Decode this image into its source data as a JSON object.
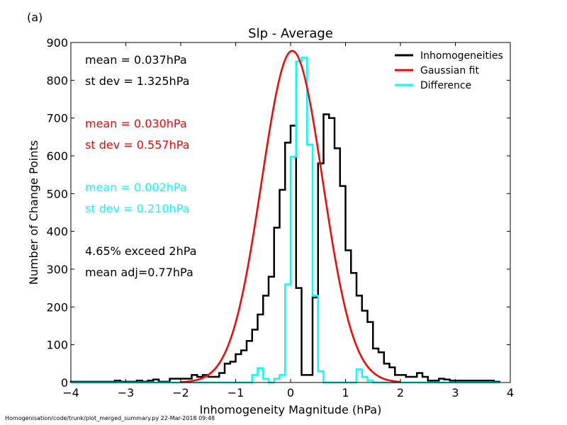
{
  "panel_label": "(a)",
  "footer": "Homogenisation/code/trunk/plot_merged_summary.py    22-Mar-2018 09:48",
  "chart_data": {
    "type": "line",
    "title": "Slp - Average",
    "xlabel": "Inhomogeneity Magnitude (hPa)",
    "ylabel": "Number of Change Points",
    "xlim": [
      -4,
      4
    ],
    "ylim": [
      0,
      900
    ],
    "xticks": [
      -4,
      -3,
      -2,
      -1,
      0,
      1,
      2,
      3,
      4
    ],
    "xtick_labels": [
      "−4",
      "−3",
      "−2",
      "−1",
      "0",
      "1",
      "2",
      "3",
      "4"
    ],
    "yticks": [
      0,
      100,
      200,
      300,
      400,
      500,
      600,
      700,
      800,
      900
    ],
    "yticks_labels": [
      "0",
      "100",
      "200",
      "300",
      "400",
      "500",
      "600",
      "700",
      "800",
      "900"
    ],
    "grid": false,
    "legend_position": "top-right",
    "series": [
      {
        "name": "Inhomogeneities",
        "color": "#000000",
        "kind": "step-histogram",
        "bin_width": 0.1,
        "x_edges_start": -4.0,
        "x_edges_end": 3.8,
        "values": [
          2,
          2,
          2,
          2,
          2,
          2,
          2,
          2,
          5,
          2,
          2,
          2,
          5,
          2,
          5,
          8,
          2,
          2,
          10,
          10,
          10,
          10,
          20,
          15,
          20,
          15,
          15,
          25,
          50,
          55,
          75,
          85,
          110,
          140,
          180,
          230,
          280,
          410,
          510,
          635,
          680,
          250,
          20,
          20,
          225,
          580,
          710,
          700,
          620,
          520,
          350,
          290,
          230,
          190,
          160,
          90,
          80,
          50,
          40,
          20,
          20,
          15,
          15,
          25,
          15,
          5,
          5,
          10,
          8,
          5,
          5,
          5,
          5,
          5,
          5,
          5,
          5,
          2
        ]
      },
      {
        "name": "Gaussian fit",
        "color": "#ff0000",
        "kind": "gaussian",
        "mean": 0.03,
        "stdev": 0.557,
        "peak": 878
      },
      {
        "name": "Difference",
        "color": "#00ffff",
        "kind": "step-histogram",
        "bin_width": 0.1,
        "x_edges_start": -4.0,
        "x_edges_end": 3.8,
        "values": [
          0,
          0,
          0,
          0,
          0,
          0,
          0,
          0,
          0,
          0,
          0,
          0,
          0,
          0,
          0,
          0,
          0,
          0,
          0,
          0,
          0,
          0,
          0,
          0,
          0,
          0,
          0,
          0,
          0,
          0,
          0,
          0,
          0,
          20,
          38,
          10,
          0,
          10,
          20,
          260,
          598,
          850,
          860,
          630,
          230,
          30,
          0,
          0,
          0,
          0,
          0,
          0,
          35,
          15,
          5,
          0,
          0,
          0,
          0,
          0,
          0,
          0,
          0,
          0,
          0,
          0,
          0,
          0,
          0,
          0,
          0,
          0,
          0,
          0,
          0,
          0,
          0,
          0
        ]
      }
    ],
    "annotations": [
      {
        "text": "mean =  0.037hPa",
        "color": "#000000"
      },
      {
        "text": "st dev =  1.325hPa",
        "color": "#000000"
      },
      {
        "text": "mean =  0.030hPa",
        "color": "#ff0000"
      },
      {
        "text": "st dev =  0.557hPa",
        "color": "#ff0000"
      },
      {
        "text": "mean =  0.002hPa",
        "color": "#00ffff"
      },
      {
        "text": "st dev =  0.210hPa",
        "color": "#00ffff"
      },
      {
        "text": "4.65% exceed 2hPa",
        "color": "#000000"
      },
      {
        "text": "mean adj=0.77hPa",
        "color": "#000000"
      }
    ]
  }
}
